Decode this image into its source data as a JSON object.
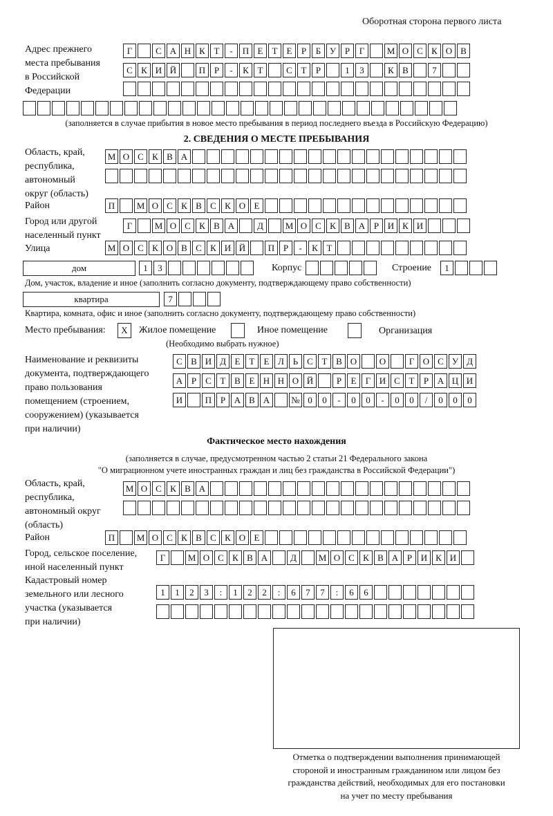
{
  "header": "Оборотная сторона первого листа",
  "prev_address": {
    "label": [
      "Адрес прежнего",
      "места пребывания",
      "в Российской",
      "Федерации"
    ],
    "rows": [
      [
        "Г",
        "",
        "С",
        "А",
        "Н",
        "К",
        "Т",
        "-",
        "П",
        "Е",
        "Т",
        "Е",
        "Р",
        "Б",
        "У",
        "Р",
        "Г",
        "",
        "М",
        "О",
        "С",
        "К",
        "О",
        "В"
      ],
      [
        "С",
        "К",
        "И",
        "Й",
        "",
        "П",
        "Р",
        "-",
        "К",
        "Т",
        "",
        "С",
        "Т",
        "Р",
        "",
        "1",
        "3",
        "",
        "К",
        "В",
        "",
        "7",
        "",
        ""
      ],
      [
        "",
        "",
        "",
        "",
        "",
        "",
        "",
        "",
        "",
        "",
        "",
        "",
        "",
        "",
        "",
        "",
        "",
        "",
        "",
        "",
        "",
        "",
        "",
        ""
      ],
      [
        "",
        "",
        "",
        "",
        "",
        "",
        "",
        "",
        "",
        "",
        "",
        "",
        "",
        "",
        "",
        "",
        "",
        "",
        "",
        "",
        "",
        "",
        "",
        "",
        "",
        "",
        "",
        "",
        "",
        ""
      ]
    ],
    "note": "(заполняется в случае прибытия в новое место пребывания в период последнего въезда в Российскую Федерацию)"
  },
  "section2": {
    "title": "2. СВЕДЕНИЯ О МЕСТЕ ПРЕБЫВАНИЯ",
    "region_label": [
      "Область, край,",
      "республика,",
      "автономный",
      "округ (область)"
    ],
    "region_rows": [
      [
        "М",
        "О",
        "С",
        "К",
        "В",
        "А",
        "",
        "",
        "",
        "",
        "",
        "",
        "",
        "",
        "",
        "",
        "",
        "",
        "",
        "",
        "",
        "",
        "",
        "",
        ""
      ],
      [
        "",
        "",
        "",
        "",
        "",
        "",
        "",
        "",
        "",
        "",
        "",
        "",
        "",
        "",
        "",
        "",
        "",
        "",
        "",
        "",
        "",
        "",
        "",
        "",
        ""
      ]
    ],
    "district_label": "Район",
    "district_row": [
      "П",
      "",
      "М",
      "О",
      "С",
      "К",
      "В",
      "С",
      "К",
      "О",
      "Е",
      "",
      "",
      "",
      "",
      "",
      "",
      "",
      "",
      "",
      "",
      "",
      "",
      "",
      ""
    ],
    "city_label": [
      "Город или другой",
      "населенный пункт"
    ],
    "city_row": [
      "Г",
      "",
      "М",
      "О",
      "С",
      "К",
      "В",
      "А",
      "",
      "Д",
      "",
      "М",
      "О",
      "С",
      "К",
      "В",
      "А",
      "Р",
      "И",
      "К",
      "И",
      "",
      "",
      ""
    ],
    "street_label": "Улица",
    "street_row": [
      "М",
      "О",
      "С",
      "К",
      "О",
      "В",
      "С",
      "К",
      "И",
      "Й",
      "",
      "П",
      "Р",
      "-",
      "К",
      "Т",
      "",
      "",
      "",
      "",
      "",
      "",
      "",
      "",
      ""
    ],
    "house_type": "дом",
    "house_cells": [
      "1",
      "3",
      "",
      "",
      "",
      "",
      "",
      ""
    ],
    "korpus_label": "Корпус",
    "korpus_cells": [
      "",
      "",
      "",
      "",
      ""
    ],
    "building_label": "Строение",
    "building_cells": [
      "1",
      "",
      "",
      ""
    ],
    "house_note": "Дом, участок, владение и иное (заполнить согласно документу, подтверждающему право собственности)",
    "flat_type": "квартира",
    "flat_cells": [
      "7",
      "",
      "",
      ""
    ],
    "flat_note": "Квартира, комната, офис и иное (заполнить согласно документу, подтверждающему право собственности)",
    "stay_label": "Место пребывания:",
    "stay_options": [
      {
        "label": "Жилое помещение",
        "mark": "X"
      },
      {
        "label": "Иное помещение",
        "mark": ""
      },
      {
        "label": "Организация",
        "mark": ""
      }
    ],
    "stay_note": "(Необходимо выбрать нужное)",
    "doc_label": [
      "Наименование и реквизиты",
      "документа, подтверждающего",
      "право пользования",
      "помещением (строением,",
      "сооружением) (указывается",
      "при наличии)"
    ],
    "doc_rows": [
      [
        "С",
        "В",
        "И",
        "Д",
        "Е",
        "Т",
        "Е",
        "Л",
        "Ь",
        "С",
        "Т",
        "В",
        "О",
        "",
        "О",
        "",
        "Г",
        "О",
        "С",
        "У",
        "Д"
      ],
      [
        "А",
        "Р",
        "С",
        "Т",
        "В",
        "Е",
        "Н",
        "Н",
        "О",
        "Й",
        "",
        "Р",
        "Е",
        "Г",
        "И",
        "С",
        "Т",
        "Р",
        "А",
        "Ц",
        "И"
      ],
      [
        "И",
        "",
        "П",
        "Р",
        "А",
        "В",
        "А",
        "",
        "№",
        "0",
        "0",
        "-",
        "0",
        "0",
        "-",
        "0",
        "0",
        "/",
        "0",
        "0",
        "0"
      ]
    ]
  },
  "actual": {
    "title": "Фактическое место нахождения",
    "note": [
      "(заполняется в случае, предусмотренном частью 2 статьи 21 Федерального закона",
      "\"О миграционном учете иностранных граждан и лиц без гражданства в Российской Федерации\")"
    ],
    "region_label": [
      "Область, край,",
      "республика,",
      "автономный округ",
      "(область)"
    ],
    "region_rows": [
      [
        "М",
        "О",
        "С",
        "К",
        "В",
        "А",
        "",
        "",
        "",
        "",
        "",
        "",
        "",
        "",
        "",
        "",
        "",
        "",
        "",
        "",
        "",
        "",
        "",
        ""
      ],
      [
        "",
        "",
        "",
        "",
        "",
        "",
        "",
        "",
        "",
        "",
        "",
        "",
        "",
        "",
        "",
        "",
        "",
        "",
        "",
        "",
        "",
        "",
        "",
        ""
      ]
    ],
    "district_label": "Район",
    "district_row": [
      "П",
      "",
      "М",
      "О",
      "С",
      "К",
      "В",
      "С",
      "К",
      "О",
      "Е",
      "",
      "",
      "",
      "",
      "",
      "",
      "",
      "",
      "",
      "",
      "",
      "",
      "",
      ""
    ],
    "city_label": [
      "Город, сельское поселение,",
      "иной населенный пункт"
    ],
    "city_row": [
      "Г",
      "",
      "М",
      "О",
      "С",
      "К",
      "В",
      "А",
      "",
      "Д",
      "",
      "М",
      "О",
      "С",
      "К",
      "В",
      "А",
      "Р",
      "И",
      "К",
      "И",
      ""
    ],
    "cadastre_label": [
      "Кадастровый номер",
      "земельного или лесного",
      "участка (указывается",
      "при наличии)"
    ],
    "cadastre_rows": [
      [
        "1",
        "1",
        "2",
        "3",
        ":",
        "1",
        "2",
        "2",
        ":",
        "6",
        "7",
        "7",
        ":",
        "6",
        "6",
        "",
        "",
        "",
        "",
        "",
        "",
        ""
      ],
      [
        "",
        "",
        "",
        "",
        "",
        "",
        "",
        "",
        "",
        "",
        "",
        "",
        "",
        "",
        "",
        "",
        "",
        "",
        "",
        "",
        "",
        ""
      ]
    ]
  },
  "stamp": {
    "caption": [
      "Отметка о подтверждении выполнения принимающей",
      "стороной и иностранным гражданином или лицом без",
      "гражданства действий, необходимых для его постановки",
      "на учет по месту пребывания"
    ]
  }
}
